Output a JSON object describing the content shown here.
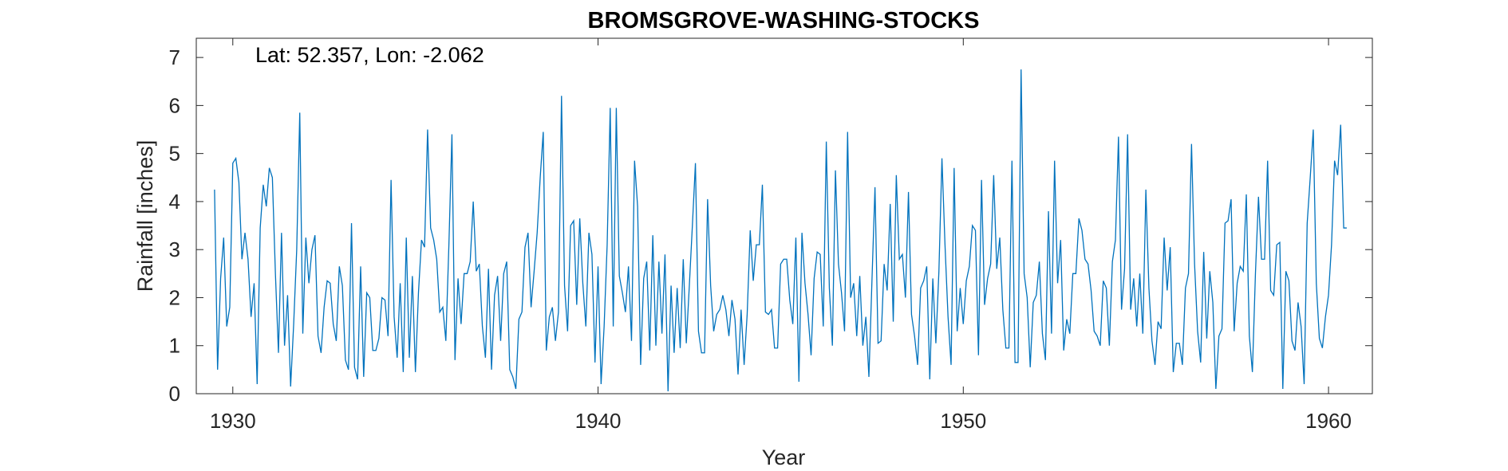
{
  "chart_data": {
    "type": "line",
    "title": "BROMSGROVE-WASHING-STOCKS",
    "xlabel": "Year",
    "ylabel": "Rainfall [inches]",
    "annotation": "Lat: 52.357, Lon: -2.062",
    "xlim": [
      1929.0,
      1961.2
    ],
    "ylim": [
      0,
      7.4
    ],
    "xticks": [
      1930,
      1940,
      1950,
      1960
    ],
    "yticks": [
      0,
      1,
      2,
      3,
      4,
      5,
      6,
      7
    ],
    "grid": false,
    "series": [
      {
        "color": "#0072BD",
        "x_start": 1929.5,
        "x_step": 0.08333,
        "values": [
          4.25,
          0.5,
          2.4,
          3.25,
          1.4,
          1.8,
          4.8,
          4.9,
          4.4,
          2.8,
          3.35,
          2.8,
          1.6,
          2.3,
          0.2,
          3.45,
          4.35,
          3.9,
          4.7,
          4.5,
          2.5,
          0.85,
          3.35,
          1.0,
          2.05,
          0.15,
          1.45,
          3.0,
          5.85,
          1.25,
          3.25,
          2.3,
          3.0,
          3.3,
          1.2,
          0.85,
          1.8,
          2.35,
          2.3,
          1.45,
          1.1,
          2.65,
          2.25,
          0.7,
          0.5,
          3.55,
          0.55,
          0.3,
          2.65,
          0.35,
          2.1,
          2.0,
          0.9,
          0.9,
          1.15,
          2.0,
          1.95,
          1.2,
          4.45,
          1.6,
          0.75,
          2.3,
          0.45,
          3.25,
          0.75,
          2.45,
          0.45,
          2.1,
          3.2,
          3.05,
          5.5,
          3.45,
          3.2,
          2.8,
          1.7,
          1.8,
          1.1,
          3.1,
          5.4,
          0.7,
          2.4,
          1.45,
          2.5,
          2.5,
          2.75,
          4.0,
          2.55,
          2.7,
          1.4,
          0.75,
          2.6,
          0.5,
          2.05,
          2.45,
          1.1,
          2.5,
          2.75,
          0.5,
          0.35,
          0.1,
          1.55,
          1.7,
          3.05,
          3.35,
          1.8,
          2.55,
          3.35,
          4.5,
          5.45,
          0.9,
          1.6,
          1.8,
          1.1,
          1.7,
          6.2,
          2.25,
          1.3,
          3.5,
          3.6,
          1.85,
          3.65,
          2.3,
          1.4,
          3.35,
          2.9,
          0.65,
          2.65,
          0.2,
          1.4,
          3.1,
          5.95,
          1.4,
          5.95,
          2.45,
          2.1,
          1.7,
          2.65,
          1.1,
          4.85,
          3.9,
          0.6,
          2.4,
          2.75,
          0.9,
          3.3,
          1.0,
          2.75,
          1.25,
          2.9,
          0.05,
          2.25,
          0.85,
          2.2,
          0.95,
          2.8,
          1.05,
          2.25,
          3.5,
          4.8,
          1.3,
          0.85,
          0.85,
          4.05,
          2.25,
          1.3,
          1.65,
          1.75,
          2.05,
          1.75,
          1.2,
          1.95,
          1.55,
          0.4,
          1.75,
          0.6,
          1.65,
          3.4,
          2.35,
          3.1,
          3.1,
          4.35,
          1.7,
          1.65,
          1.75,
          0.95,
          0.95,
          2.7,
          2.8,
          2.8,
          1.95,
          1.45,
          3.25,
          0.25,
          3.35,
          2.3,
          1.65,
          0.8,
          2.4,
          2.95,
          2.9,
          1.4,
          5.25,
          2.2,
          1.0,
          4.65,
          2.7,
          2.1,
          1.3,
          5.45,
          2.0,
          2.3,
          1.2,
          2.45,
          1.0,
          1.6,
          0.35,
          2.35,
          4.3,
          1.05,
          1.1,
          2.7,
          2.15,
          3.95,
          1.5,
          4.55,
          2.8,
          2.9,
          2.0,
          4.2,
          1.65,
          1.2,
          0.6,
          2.2,
          2.35,
          2.65,
          0.3,
          2.4,
          1.05,
          2.55,
          4.9,
          3.1,
          1.6,
          0.6,
          4.7,
          1.3,
          2.2,
          1.45,
          2.35,
          2.65,
          3.5,
          3.4,
          0.8,
          4.45,
          1.85,
          2.4,
          2.7,
          4.55,
          2.6,
          3.25,
          1.75,
          0.95,
          0.95,
          4.85,
          0.65,
          0.65,
          6.75,
          2.5,
          2.0,
          0.55,
          1.9,
          2.05,
          2.75,
          1.25,
          0.7,
          3.8,
          1.25,
          4.85,
          2.3,
          3.2,
          0.9,
          1.55,
          1.25,
          2.5,
          2.5,
          3.65,
          3.4,
          2.8,
          2.7,
          2.15,
          1.3,
          1.2,
          1.0,
          2.35,
          2.2,
          1.0,
          2.75,
          3.2,
          5.35,
          1.75,
          2.6,
          5.4,
          1.75,
          2.4,
          1.4,
          2.5,
          1.25,
          4.25,
          2.2,
          1.1,
          0.6,
          1.5,
          1.35,
          3.25,
          2.15,
          3.05,
          0.45,
          1.05,
          1.05,
          0.6,
          2.2,
          2.5,
          5.2,
          2.7,
          1.3,
          0.65,
          2.95,
          1.15,
          2.55,
          1.9,
          0.1,
          1.2,
          1.35,
          3.55,
          3.6,
          4.05,
          1.3,
          2.3,
          2.65,
          2.55,
          4.15,
          1.2,
          0.45,
          2.5,
          4.1,
          2.8,
          2.8,
          4.85,
          2.15,
          2.05,
          3.1,
          3.15,
          0.1,
          2.55,
          2.35,
          1.1,
          0.9,
          1.9,
          1.4,
          0.2,
          3.55,
          4.5,
          5.5,
          2.3,
          1.15,
          0.95,
          1.6,
          2.05,
          3.1,
          4.85,
          4.55,
          5.6,
          3.45,
          3.45
        ]
      }
    ]
  }
}
